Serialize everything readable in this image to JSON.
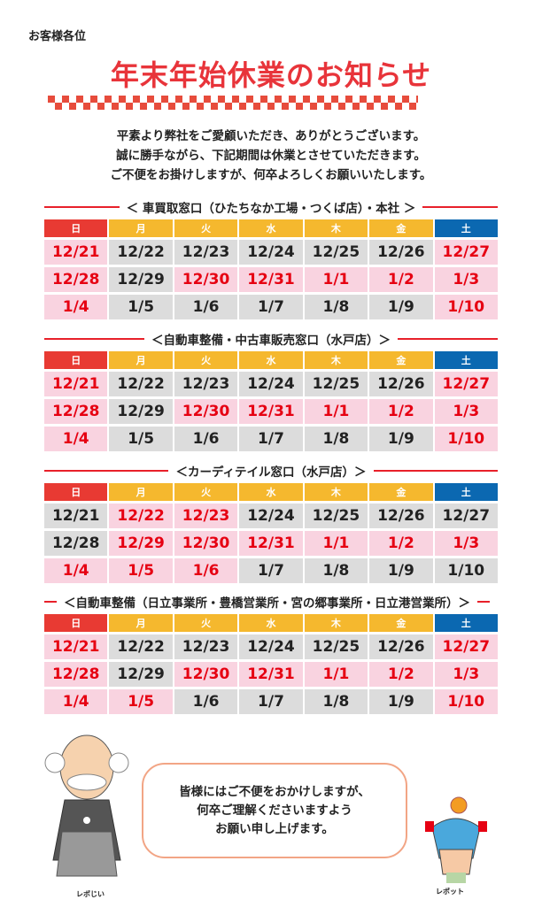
{
  "greeting": "お客様各位",
  "title": "年末年始休業のお知らせ",
  "colors": {
    "accent": "#e8343a",
    "closed_bg": "#f9d3e0",
    "closed_text": "#e60012",
    "open_bg": "#dcdcdc",
    "sunday": "#e83a33",
    "weekday": "#f5b82e",
    "saturday": "#0b68b1"
  },
  "intro": [
    "平素より弊社をご愛顧いただき、ありがとうございます。",
    "誠に勝手ながら、下記期間は休業とさせていただきます。",
    "ご不便をお掛けしますが、何卒よろしくお願いいたします。"
  ],
  "weekdays": [
    "日",
    "月",
    "火",
    "水",
    "木",
    "金",
    "土"
  ],
  "sections": [
    {
      "title": "＜ 車買取窓口（ひたちなか工場・つくば店）・本社 ＞",
      "rows": [
        [
          [
            "12/21",
            "closed"
          ],
          [
            "12/22",
            "open"
          ],
          [
            "12/23",
            "open"
          ],
          [
            "12/24",
            "open"
          ],
          [
            "12/25",
            "open"
          ],
          [
            "12/26",
            "open"
          ],
          [
            "12/27",
            "closed"
          ]
        ],
        [
          [
            "12/28",
            "closed"
          ],
          [
            "12/29",
            "open"
          ],
          [
            "12/30",
            "closed"
          ],
          [
            "12/31",
            "closed"
          ],
          [
            "1/1",
            "closed"
          ],
          [
            "1/2",
            "closed"
          ],
          [
            "1/3",
            "closed"
          ]
        ],
        [
          [
            "1/4",
            "closed"
          ],
          [
            "1/5",
            "open"
          ],
          [
            "1/6",
            "open"
          ],
          [
            "1/7",
            "open"
          ],
          [
            "1/8",
            "open"
          ],
          [
            "1/9",
            "open"
          ],
          [
            "1/10",
            "closed"
          ]
        ]
      ]
    },
    {
      "title": "＜自動車整備・中古車販売窓口（水戸店）＞",
      "rows": [
        [
          [
            "12/21",
            "closed"
          ],
          [
            "12/22",
            "open"
          ],
          [
            "12/23",
            "open"
          ],
          [
            "12/24",
            "open"
          ],
          [
            "12/25",
            "open"
          ],
          [
            "12/26",
            "open"
          ],
          [
            "12/27",
            "closed"
          ]
        ],
        [
          [
            "12/28",
            "closed"
          ],
          [
            "12/29",
            "open"
          ],
          [
            "12/30",
            "closed"
          ],
          [
            "12/31",
            "closed"
          ],
          [
            "1/1",
            "closed"
          ],
          [
            "1/2",
            "closed"
          ],
          [
            "1/3",
            "closed"
          ]
        ],
        [
          [
            "1/4",
            "closed"
          ],
          [
            "1/5",
            "open"
          ],
          [
            "1/6",
            "open"
          ],
          [
            "1/7",
            "open"
          ],
          [
            "1/8",
            "open"
          ],
          [
            "1/9",
            "open"
          ],
          [
            "1/10",
            "closed"
          ]
        ]
      ]
    },
    {
      "title": "＜カーディテイル窓口（水戸店）＞",
      "rows": [
        [
          [
            "12/21",
            "open"
          ],
          [
            "12/22",
            "closed"
          ],
          [
            "12/23",
            "closed"
          ],
          [
            "12/24",
            "open"
          ],
          [
            "12/25",
            "open"
          ],
          [
            "12/26",
            "open"
          ],
          [
            "12/27",
            "open"
          ]
        ],
        [
          [
            "12/28",
            "open"
          ],
          [
            "12/29",
            "closed"
          ],
          [
            "12/30",
            "closed"
          ],
          [
            "12/31",
            "closed"
          ],
          [
            "1/1",
            "closed"
          ],
          [
            "1/2",
            "closed"
          ],
          [
            "1/3",
            "closed"
          ]
        ],
        [
          [
            "1/4",
            "closed"
          ],
          [
            "1/5",
            "closed"
          ],
          [
            "1/6",
            "closed"
          ],
          [
            "1/7",
            "open"
          ],
          [
            "1/8",
            "open"
          ],
          [
            "1/9",
            "open"
          ],
          [
            "1/10",
            "open"
          ]
        ]
      ]
    },
    {
      "title": "＜自動車整備（日立事業所・豊橋営業所・宮の郷事業所・日立港営業所）＞",
      "rows": [
        [
          [
            "12/21",
            "closed"
          ],
          [
            "12/22",
            "open"
          ],
          [
            "12/23",
            "open"
          ],
          [
            "12/24",
            "open"
          ],
          [
            "12/25",
            "open"
          ],
          [
            "12/26",
            "open"
          ],
          [
            "12/27",
            "closed"
          ]
        ],
        [
          [
            "12/28",
            "closed"
          ],
          [
            "12/29",
            "open"
          ],
          [
            "12/30",
            "closed"
          ],
          [
            "12/31",
            "closed"
          ],
          [
            "1/1",
            "closed"
          ],
          [
            "1/2",
            "closed"
          ],
          [
            "1/3",
            "closed"
          ]
        ],
        [
          [
            "1/4",
            "closed"
          ],
          [
            "1/5",
            "closed"
          ],
          [
            "1/6",
            "open"
          ],
          [
            "1/7",
            "open"
          ],
          [
            "1/8",
            "open"
          ],
          [
            "1/9",
            "open"
          ],
          [
            "1/10",
            "closed"
          ]
        ]
      ]
    }
  ],
  "bubble": [
    "皆様にはご不便をおかけしますが、",
    "何卒ご理解くださいますよう",
    "お願い申し上げます。"
  ],
  "characters": {
    "left": "レポじい",
    "right": "レポット"
  }
}
